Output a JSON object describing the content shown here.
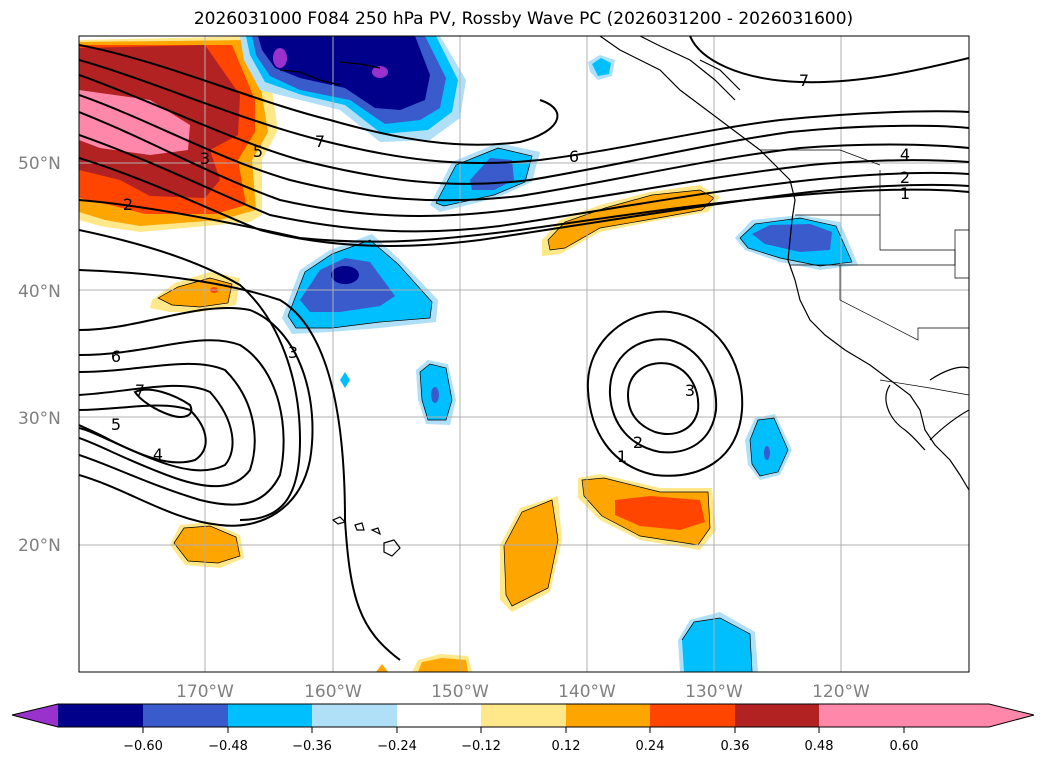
{
  "title": "2026031000 F084 250 hPa PV, Rossby Wave PC (2026031200 - 2026031600)",
  "lat_labels": [
    "50°N",
    "40°N",
    "30°N",
    "20°N"
  ],
  "lon_labels": [
    "170°W",
    "160°W",
    "150°W",
    "140°W",
    "130°W",
    "120°W"
  ],
  "contour_labels": [
    "7",
    "6",
    "5",
    "3",
    "2",
    "7",
    "6",
    "5",
    "4",
    "3",
    "3",
    "2",
    "1",
    "4",
    "2",
    "1",
    "7"
  ],
  "colorbar": {
    "ticks": [
      "−0.60",
      "−0.48",
      "−0.36",
      "−0.24",
      "−0.12",
      "0.12",
      "0.24",
      "0.36",
      "0.48",
      "0.60"
    ],
    "colors": [
      "#9932cc",
      "#00008b",
      "#3a5bcc",
      "#00bfff",
      "#b0e0f8",
      "#ffffff",
      "#ffe88a",
      "#ffa500",
      "#ff4500",
      "#b22222",
      "#ff88aa"
    ]
  }
}
